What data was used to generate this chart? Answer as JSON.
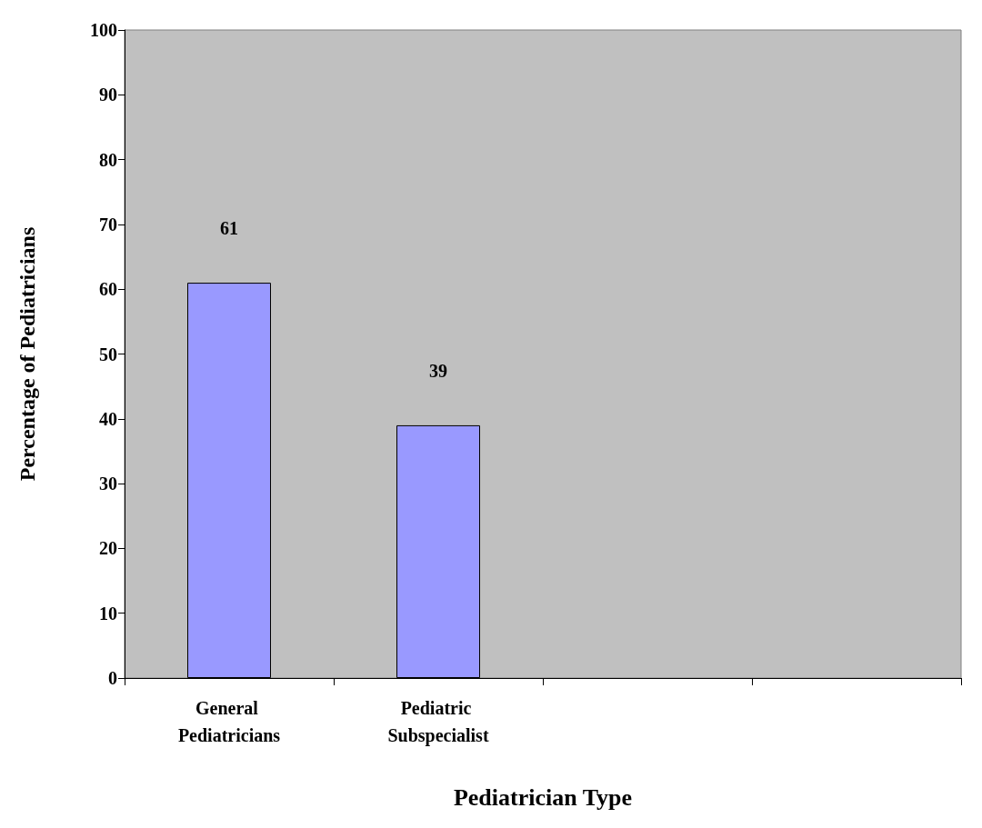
{
  "chart_data": {
    "type": "bar",
    "xlabel": "Pediatrician Type",
    "ylabel": "Percentage of Pediatricians",
    "categories": [
      "General Pediatricians",
      "Pediatric Subspecialist",
      null,
      null
    ],
    "values": [
      61,
      39,
      null,
      null
    ],
    "color": "#9999ff",
    "ylim": [
      0,
      100
    ],
    "yticks": [
      0,
      10,
      20,
      30,
      40,
      50,
      60,
      70,
      80,
      90,
      100
    ],
    "data_labels": true
  }
}
